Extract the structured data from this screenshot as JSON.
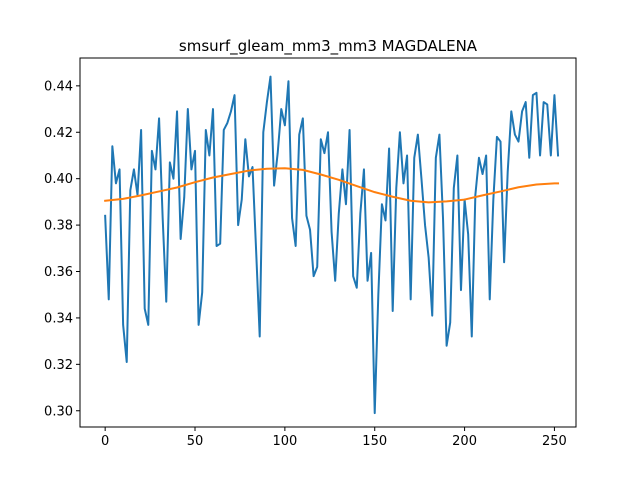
{
  "chart_data": {
    "type": "line",
    "title": "smsurf_gleam_mm3_mm3 MAGDALENA",
    "xlabel": "",
    "ylabel": "",
    "xlim": [
      -14,
      262
    ],
    "ylim": [
      0.293,
      0.452
    ],
    "xticks": [
      0,
      50,
      100,
      150,
      200,
      250
    ],
    "yticks": [
      0.3,
      0.32,
      0.34,
      0.36,
      0.38,
      0.4,
      0.42,
      0.44
    ],
    "ytick_labels": [
      "0.30",
      "0.32",
      "0.34",
      "0.36",
      "0.38",
      "0.40",
      "0.42",
      "0.44"
    ],
    "grid": false,
    "legend": "none",
    "series": [
      {
        "color": "#1f77b4",
        "x": [
          0,
          2,
          4,
          6,
          8,
          10,
          12,
          14,
          16,
          18,
          20,
          22,
          24,
          26,
          28,
          30,
          32,
          34,
          36,
          38,
          40,
          42,
          44,
          46,
          48,
          50,
          52,
          54,
          56,
          58,
          60,
          62,
          64,
          66,
          68,
          70,
          72,
          74,
          76,
          78,
          80,
          82,
          84,
          86,
          88,
          90,
          92,
          94,
          96,
          98,
          100,
          102,
          104,
          106,
          108,
          110,
          112,
          114,
          116,
          118,
          120,
          122,
          124,
          126,
          128,
          130,
          132,
          134,
          136,
          138,
          140,
          142,
          144,
          146,
          148,
          150,
          152,
          154,
          156,
          158,
          160,
          162,
          164,
          166,
          168,
          170,
          172,
          174,
          176,
          178,
          180,
          182,
          184,
          186,
          188,
          190,
          192,
          194,
          196,
          198,
          200,
          202,
          204,
          206,
          208,
          210,
          212,
          214,
          216,
          218,
          220,
          222,
          224,
          226,
          228,
          230,
          232,
          234,
          236,
          238,
          240,
          242,
          244,
          246,
          248,
          250,
          252
        ],
        "values": [
          0.384,
          0.348,
          0.414,
          0.398,
          0.404,
          0.337,
          0.321,
          0.395,
          0.404,
          0.393,
          0.421,
          0.344,
          0.337,
          0.412,
          0.404,
          0.426,
          0.383,
          0.347,
          0.407,
          0.4,
          0.429,
          0.374,
          0.392,
          0.43,
          0.404,
          0.412,
          0.337,
          0.351,
          0.421,
          0.41,
          0.43,
          0.371,
          0.372,
          0.421,
          0.424,
          0.429,
          0.436,
          0.38,
          0.391,
          0.417,
          0.401,
          0.405,
          0.369,
          0.332,
          0.42,
          0.433,
          0.444,
          0.397,
          0.411,
          0.43,
          0.423,
          0.442,
          0.383,
          0.371,
          0.419,
          0.426,
          0.384,
          0.378,
          0.358,
          0.362,
          0.417,
          0.411,
          0.42,
          0.377,
          0.356,
          0.385,
          0.404,
          0.389,
          0.421,
          0.358,
          0.353,
          0.385,
          0.404,
          0.356,
          0.368,
          0.299,
          0.35,
          0.389,
          0.382,
          0.413,
          0.343,
          0.396,
          0.42,
          0.398,
          0.41,
          0.348,
          0.409,
          0.419,
          0.4,
          0.38,
          0.366,
          0.341,
          0.409,
          0.419,
          0.383,
          0.328,
          0.338,
          0.396,
          0.41,
          0.352,
          0.391,
          0.376,
          0.332,
          0.393,
          0.409,
          0.402,
          0.41,
          0.348,
          0.391,
          0.418,
          0.416,
          0.364,
          0.403,
          0.429,
          0.419,
          0.416,
          0.429,
          0.433,
          0.409,
          0.436,
          0.437,
          0.41,
          0.433,
          0.432,
          0.41,
          0.436,
          0.41
        ]
      },
      {
        "color": "#ff7f0e",
        "x": [
          0,
          10,
          20,
          30,
          40,
          50,
          60,
          70,
          80,
          90,
          100,
          110,
          120,
          130,
          140,
          150,
          160,
          170,
          180,
          190,
          200,
          210,
          220,
          230,
          240,
          250,
          252
        ],
        "values": [
          0.3905,
          0.3913,
          0.3928,
          0.3945,
          0.3962,
          0.3985,
          0.4005,
          0.402,
          0.4035,
          0.4043,
          0.4045,
          0.4038,
          0.4018,
          0.3995,
          0.3968,
          0.3942,
          0.3922,
          0.3905,
          0.3898,
          0.3902,
          0.391,
          0.3928,
          0.3945,
          0.3963,
          0.3975,
          0.398,
          0.398
        ]
      }
    ]
  }
}
